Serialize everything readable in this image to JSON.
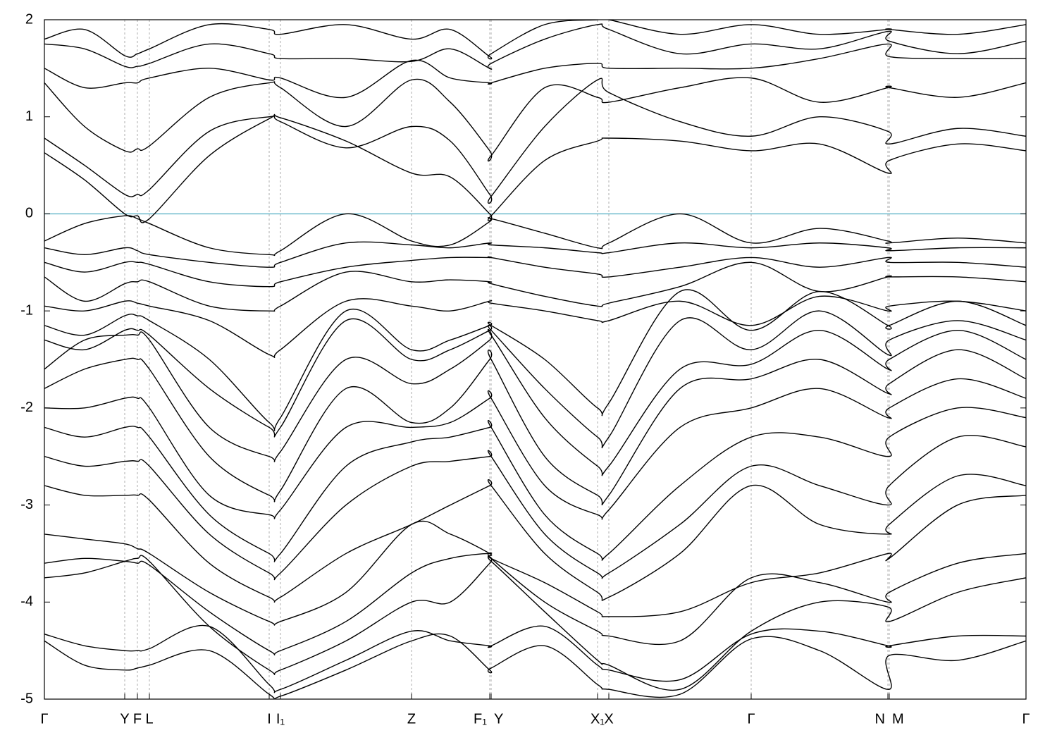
{
  "chart_data": {
    "type": "line",
    "xlim": [
      0,
      1393
    ],
    "ylim": [
      -5,
      2
    ],
    "yticks": [
      -5,
      -4,
      -3,
      -2,
      -1,
      0,
      1,
      2
    ],
    "xticks": [
      {
        "value": 0,
        "label": "Γ"
      },
      {
        "value": 114,
        "label": "Y"
      },
      {
        "value": 132,
        "label": "F"
      },
      {
        "value": 149,
        "label": "L"
      },
      {
        "value": 319,
        "label": "I"
      },
      {
        "value": 335,
        "label": "I₁"
      },
      {
        "value": 521,
        "label": "Z"
      },
      {
        "value": 632,
        "label": "F₁"
      },
      {
        "value": 634,
        "label": "Y"
      },
      {
        "value": 785,
        "label": "X₁"
      },
      {
        "value": 801,
        "label": "X"
      },
      {
        "value": 1003,
        "label": "Γ"
      },
      {
        "value": 1197,
        "label": "N"
      },
      {
        "value": 1199,
        "label": "M"
      },
      {
        "value": 1393,
        "label": "Γ"
      }
    ],
    "grid": true,
    "color": "#000000",
    "fermi_level": 0,
    "fermi_color": "#5fb4c8",
    "x": [
      0,
      57,
      114,
      132,
      149,
      234,
      319,
      335,
      428,
      521,
      576,
      632,
      634,
      710,
      785,
      801,
      902,
      1003,
      1100,
      1197,
      1199,
      1296,
      1393
    ],
    "bands": [
      [
        0.63,
        0.35,
        0.0,
        -0.02,
        -0.05,
        0.6,
        0.98,
        0.99,
        0.75,
        0.42,
        0.38,
        0.0,
        -0.02,
        0.55,
        0.75,
        0.78,
        0.75,
        0.65,
        0.72,
        0.42,
        0.55,
        0.72,
        0.65
      ],
      [
        0.78,
        0.5,
        0.2,
        0.2,
        0.25,
        0.85,
        1.0,
        0.95,
        0.68,
        0.9,
        0.75,
        0.2,
        0.18,
        0.9,
        1.38,
        1.25,
        0.95,
        0.8,
        1.0,
        0.85,
        0.72,
        0.88,
        0.8
      ],
      [
        1.35,
        0.9,
        0.65,
        0.67,
        0.7,
        1.2,
        1.35,
        1.3,
        0.9,
        1.38,
        1.15,
        0.65,
        0.6,
        1.3,
        1.2,
        1.15,
        1.3,
        1.4,
        1.15,
        1.3,
        1.3,
        1.2,
        1.35
      ],
      [
        1.5,
        1.3,
        1.35,
        1.35,
        1.4,
        1.5,
        1.38,
        1.4,
        1.2,
        1.58,
        1.4,
        1.35,
        1.35,
        1.5,
        1.55,
        1.5,
        1.5,
        1.5,
        1.6,
        1.75,
        1.62,
        1.6,
        1.6
      ],
      [
        1.75,
        1.7,
        1.52,
        1.52,
        1.55,
        1.75,
        1.65,
        1.6,
        1.6,
        1.57,
        1.7,
        1.5,
        1.55,
        1.8,
        1.95,
        1.9,
        1.65,
        1.75,
        1.7,
        1.88,
        1.78,
        1.65,
        1.78
      ],
      [
        1.8,
        1.9,
        1.63,
        1.65,
        1.7,
        1.95,
        1.9,
        1.85,
        1.95,
        1.8,
        1.9,
        1.62,
        1.65,
        1.95,
        2.0,
        2.0,
        1.85,
        1.95,
        1.85,
        1.9,
        1.9,
        1.85,
        1.95
      ],
      [
        -0.28,
        -0.1,
        -0.02,
        -0.05,
        -0.1,
        -0.35,
        -0.42,
        -0.38,
        0.0,
        -0.28,
        -0.32,
        -0.08,
        -0.05,
        -0.2,
        -0.35,
        -0.3,
        0.0,
        -0.3,
        -0.15,
        -0.28,
        -0.3,
        -0.25,
        -0.3
      ],
      [
        -0.35,
        -0.42,
        -0.35,
        -0.38,
        -0.42,
        -0.5,
        -0.55,
        -0.5,
        -0.3,
        -0.32,
        -0.35,
        -0.3,
        -0.32,
        -0.35,
        -0.4,
        -0.4,
        -0.3,
        -0.35,
        -0.3,
        -0.35,
        -0.38,
        -0.35,
        -0.35
      ],
      [
        -0.5,
        -0.6,
        -0.5,
        -0.5,
        -0.52,
        -0.7,
        -0.75,
        -0.7,
        -0.55,
        -0.48,
        -0.45,
        -0.45,
        -0.45,
        -0.55,
        -0.62,
        -0.65,
        -0.55,
        -0.45,
        -0.55,
        -0.45,
        -0.5,
        -0.5,
        -0.55
      ],
      [
        -0.65,
        -0.9,
        -0.72,
        -0.7,
        -0.7,
        -0.95,
        -1.0,
        -0.95,
        -0.6,
        -0.7,
        -0.68,
        -0.7,
        -0.72,
        -0.85,
        -0.95,
        -0.92,
        -0.75,
        -0.5,
        -0.8,
        -0.65,
        -0.65,
        -0.65,
        -0.7
      ],
      [
        -0.95,
        -1.0,
        -0.9,
        -0.92,
        -0.95,
        -1.1,
        -1.45,
        -1.4,
        -0.9,
        -0.95,
        -1.0,
        -0.9,
        -0.92,
        -1.0,
        -1.1,
        -1.1,
        -0.9,
        -1.15,
        -0.85,
        -1.0,
        -0.95,
        -0.9,
        -1.0
      ],
      [
        -1.15,
        -1.25,
        -1.05,
        -1.05,
        -1.1,
        -1.5,
        -2.15,
        -2.1,
        -1.0,
        -1.4,
        -1.3,
        -1.15,
        -1.15,
        -1.5,
        -2.0,
        -1.95,
        -0.8,
        -1.2,
        -0.8,
        -1.15,
        -1.15,
        -0.9,
        -1.15
      ],
      [
        -1.3,
        -1.4,
        -1.2,
        -1.2,
        -1.25,
        -1.8,
        -2.2,
        -2.2,
        -1.1,
        -1.5,
        -1.4,
        -1.2,
        -1.2,
        -1.8,
        -2.3,
        -2.3,
        -1.1,
        -1.4,
        -1.0,
        -1.45,
        -1.3,
        -1.1,
        -1.3
      ],
      [
        -1.6,
        -1.3,
        -1.25,
        -1.25,
        -1.3,
        -2.2,
        -2.5,
        -2.45,
        -1.5,
        -1.75,
        -1.6,
        -1.3,
        -1.25,
        -2.1,
        -2.6,
        -2.6,
        -1.6,
        -1.55,
        -1.2,
        -1.6,
        -1.5,
        -1.2,
        -1.5
      ],
      [
        -1.8,
        -1.6,
        -1.5,
        -1.5,
        -1.6,
        -2.5,
        -2.9,
        -2.85,
        -1.8,
        -2.15,
        -2.0,
        -1.5,
        -1.5,
        -2.5,
        -2.9,
        -2.9,
        -1.8,
        -1.7,
        -1.5,
        -1.85,
        -1.75,
        -1.4,
        -1.7
      ],
      [
        -2.0,
        -2.0,
        -1.9,
        -1.9,
        -2.0,
        -2.9,
        -3.1,
        -3.05,
        -2.2,
        -2.2,
        -2.15,
        -1.9,
        -1.9,
        -2.8,
        -3.1,
        -3.05,
        -2.2,
        -2.0,
        -1.8,
        -2.1,
        -2.0,
        -1.7,
        -1.9
      ],
      [
        -2.2,
        -2.3,
        -2.2,
        -2.2,
        -2.3,
        -3.1,
        -3.5,
        -3.5,
        -2.6,
        -2.35,
        -2.3,
        -2.2,
        -2.2,
        -3.1,
        -3.5,
        -3.5,
        -2.8,
        -2.3,
        -2.3,
        -2.5,
        -2.3,
        -2.0,
        -2.1
      ],
      [
        -2.5,
        -2.6,
        -2.55,
        -2.55,
        -2.6,
        -3.3,
        -3.7,
        -3.7,
        -3.0,
        -2.6,
        -2.55,
        -2.5,
        -2.5,
        -3.3,
        -3.7,
        -3.7,
        -3.2,
        -2.6,
        -2.8,
        -3.0,
        -2.8,
        -2.3,
        -2.4
      ],
      [
        -2.8,
        -2.9,
        -2.9,
        -2.9,
        -2.95,
        -3.6,
        -3.95,
        -3.95,
        -3.5,
        -3.2,
        -3.0,
        -2.8,
        -2.8,
        -3.5,
        -3.9,
        -3.95,
        -3.5,
        -2.8,
        -3.2,
        -3.3,
        -3.2,
        -2.7,
        -2.8
      ],
      [
        -3.3,
        -3.35,
        -3.4,
        -3.45,
        -3.5,
        -3.9,
        -4.2,
        -4.2,
        -3.9,
        -3.2,
        -3.3,
        -3.5,
        -3.55,
        -3.8,
        -4.1,
        -4.15,
        -4.1,
        -3.8,
        -3.7,
        -3.5,
        -3.55,
        -3.0,
        -2.9
      ],
      [
        -3.6,
        -3.55,
        -3.58,
        -3.6,
        -3.62,
        -4.1,
        -4.5,
        -4.5,
        -4.2,
        -3.7,
        -3.55,
        -3.5,
        -3.55,
        -4.0,
        -4.3,
        -4.35,
        -4.4,
        -3.75,
        -3.8,
        -4.0,
        -3.9,
        -3.6,
        -3.5
      ],
      [
        -3.75,
        -3.7,
        -3.58,
        -3.55,
        -3.58,
        -4.25,
        -4.7,
        -4.7,
        -4.4,
        -4.0,
        -4.0,
        -3.6,
        -3.58,
        -4.1,
        -4.6,
        -4.65,
        -4.9,
        -4.3,
        -4.0,
        -4.05,
        -4.2,
        -3.9,
        -3.75
      ],
      [
        -4.33,
        -4.45,
        -4.5,
        -4.5,
        -4.48,
        -4.25,
        -4.85,
        -4.9,
        -4.6,
        -4.3,
        -4.4,
        -4.45,
        -4.45,
        -4.25,
        -4.65,
        -4.7,
        -4.8,
        -4.33,
        -4.3,
        -4.45,
        -4.45,
        -4.35,
        -4.35
      ],
      [
        -4.4,
        -4.65,
        -4.7,
        -4.68,
        -4.65,
        -4.5,
        -4.95,
        -4.97,
        -4.7,
        -4.4,
        -4.35,
        -4.7,
        -4.68,
        -4.45,
        -4.85,
        -4.9,
        -4.95,
        -4.38,
        -4.5,
        -4.9,
        -4.55,
        -4.6,
        -4.4
      ]
    ]
  }
}
